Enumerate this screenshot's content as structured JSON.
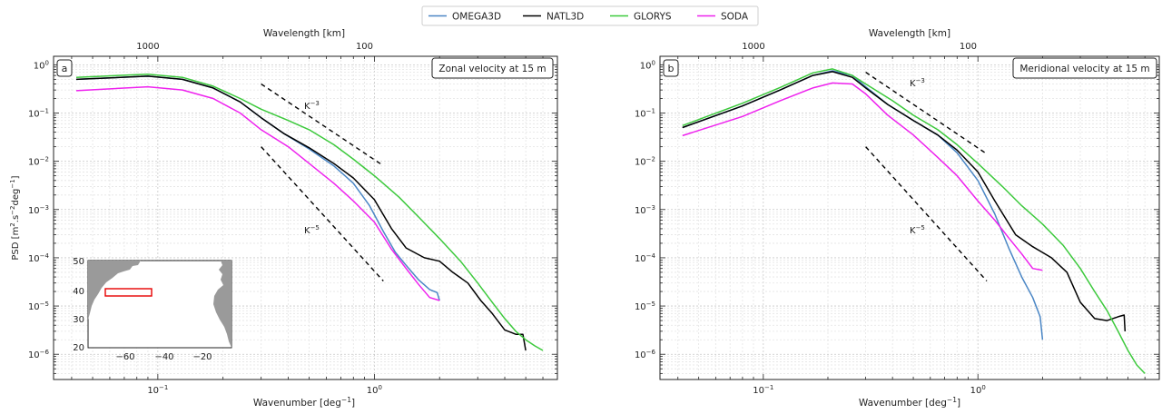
{
  "legend": {
    "placement": "top-center",
    "items": [
      {
        "label": "OMEGA3D",
        "color": "#4a86c5"
      },
      {
        "label": "NATL3D",
        "color": "#000000"
      },
      {
        "label": "GLORYS",
        "color": "#3cc93c"
      },
      {
        "label": "SODA",
        "color": "#ee22ee"
      }
    ]
  },
  "axes_common": {
    "xlabel": "Wavenumber [deg",
    "xlabel_sup": "−1",
    "xlabel_end": "]",
    "top_xlabel": "Wavelength [km]",
    "top_ticks": [
      "1000",
      "100"
    ],
    "x_ticks": [
      {
        "base": "10",
        "exp": "−1"
      },
      {
        "base": "10",
        "exp": "0"
      }
    ],
    "y_ticks": [
      {
        "base": "10",
        "exp": "0"
      },
      {
        "base": "10",
        "exp": "−1"
      },
      {
        "base": "10",
        "exp": "−2"
      },
      {
        "base": "10",
        "exp": "−3"
      },
      {
        "base": "10",
        "exp": "−4"
      },
      {
        "base": "10",
        "exp": "−5"
      },
      {
        "base": "10",
        "exp": "−6"
      }
    ],
    "slope3": {
      "base": "K",
      "exp": "−3"
    },
    "slope5": {
      "base": "K",
      "exp": "−5"
    }
  },
  "ylabel": {
    "a": "PSD [m",
    "b": "2",
    "c": ".s",
    "d": "−2",
    "e": "deg",
    "f": "−1",
    "g": "]"
  },
  "chart_data": [
    {
      "type": "line",
      "panel": "a",
      "title": "Zonal velocity at 15 m",
      "xscale": "log",
      "yscale": "log",
      "xlim": [
        0.033,
        7.0
      ],
      "ylim": [
        3e-07,
        1.5
      ],
      "grid": true,
      "series": [
        {
          "name": "OMEGA3D",
          "color": "#4a86c5",
          "x": [
            0.042,
            0.09,
            0.13,
            0.18,
            0.24,
            0.3,
            0.38,
            0.5,
            0.65,
            0.8,
            0.95,
            1.1,
            1.25,
            1.4,
            1.6,
            1.8,
            1.95,
            2.0
          ],
          "y": [
            0.5,
            0.58,
            0.5,
            0.33,
            0.17,
            0.08,
            0.038,
            0.018,
            0.008,
            0.0035,
            0.0012,
            0.00035,
            0.00013,
            7e-05,
            3.5e-05,
            2.2e-05,
            1.9e-05,
            1.3e-05
          ]
        },
        {
          "name": "NATL3D",
          "color": "#000000",
          "x": [
            0.042,
            0.09,
            0.13,
            0.18,
            0.24,
            0.3,
            0.38,
            0.5,
            0.65,
            0.8,
            1.0,
            1.2,
            1.4,
            1.7,
            2.0,
            2.3,
            2.7,
            3.1,
            3.5,
            4.0,
            4.5,
            4.8,
            4.85,
            5.0
          ],
          "y": [
            0.5,
            0.58,
            0.5,
            0.33,
            0.17,
            0.08,
            0.038,
            0.019,
            0.009,
            0.0045,
            0.0016,
            0.0004,
            0.00016,
            0.0001,
            8.5e-05,
            5e-05,
            3e-05,
            1.3e-05,
            7e-06,
            3.2e-06,
            2.6e-06,
            2.6e-06,
            2.6e-06,
            1.2e-06
          ]
        },
        {
          "name": "GLORYS",
          "color": "#3cc93c",
          "x": [
            0.042,
            0.09,
            0.13,
            0.18,
            0.24,
            0.3,
            0.4,
            0.5,
            0.65,
            0.8,
            1.0,
            1.3,
            1.6,
            2.0,
            2.5,
            3.0,
            3.5,
            4.0,
            4.5,
            5.0,
            5.5,
            6.0
          ],
          "y": [
            0.55,
            0.64,
            0.55,
            0.36,
            0.2,
            0.12,
            0.07,
            0.045,
            0.022,
            0.011,
            0.005,
            0.0018,
            0.0007,
            0.00025,
            8.5e-05,
            3e-05,
            1.2e-05,
            5.5e-06,
            3e-06,
            2e-06,
            1.5e-06,
            1.2e-06
          ]
        },
        {
          "name": "SODA",
          "color": "#ee22ee",
          "x": [
            0.042,
            0.09,
            0.13,
            0.18,
            0.24,
            0.3,
            0.4,
            0.5,
            0.65,
            0.8,
            1.0,
            1.2,
            1.4,
            1.6,
            1.8,
            2.0
          ],
          "y": [
            0.29,
            0.35,
            0.3,
            0.2,
            0.1,
            0.045,
            0.02,
            0.009,
            0.0035,
            0.0015,
            0.00055,
            0.00015,
            6e-05,
            2.8e-05,
            1.5e-05,
            1.3e-05
          ]
        }
      ],
      "reference_slopes": [
        {
          "label": "slope3",
          "x": [
            0.3,
            1.1
          ],
          "y": [
            0.4,
            0.0081
          ]
        },
        {
          "label": "slope5",
          "x": [
            0.3,
            1.1
          ],
          "y": [
            0.02,
            3.3e-05
          ]
        }
      ],
      "inset_map": {
        "y_ticks": [
          "50",
          "40",
          "30",
          "20"
        ],
        "x_ticks": [
          "−60",
          "−40",
          "−20"
        ]
      }
    },
    {
      "type": "line",
      "panel": "b",
      "title": "Meridional velocity at 15 m",
      "xscale": "log",
      "yscale": "log",
      "xlim": [
        0.033,
        7.0
      ],
      "ylim": [
        3e-07,
        1.5
      ],
      "grid": true,
      "series": [
        {
          "name": "OMEGA3D",
          "color": "#4a86c5",
          "x": [
            0.042,
            0.08,
            0.12,
            0.17,
            0.21,
            0.26,
            0.3,
            0.38,
            0.5,
            0.65,
            0.8,
            1.0,
            1.2,
            1.4,
            1.6,
            1.8,
            1.95,
            2.0
          ],
          "y": [
            0.05,
            0.14,
            0.3,
            0.6,
            0.75,
            0.6,
            0.35,
            0.15,
            0.07,
            0.035,
            0.015,
            0.004,
            0.0008,
            0.00015,
            4e-05,
            1.5e-05,
            6e-06,
            2e-06
          ]
        },
        {
          "name": "NATL3D",
          "color": "#000000",
          "x": [
            0.042,
            0.08,
            0.12,
            0.17,
            0.21,
            0.26,
            0.3,
            0.38,
            0.5,
            0.65,
            0.8,
            1.0,
            1.2,
            1.5,
            1.8,
            2.2,
            2.6,
            3.0,
            3.5,
            4.0,
            4.5,
            4.8,
            4.85
          ],
          "y": [
            0.05,
            0.14,
            0.3,
            0.6,
            0.72,
            0.55,
            0.33,
            0.15,
            0.07,
            0.035,
            0.017,
            0.006,
            0.0015,
            0.0003,
            0.00017,
            0.0001,
            5e-05,
            1.2e-05,
            5.5e-06,
            5e-06,
            6e-06,
            6.5e-06,
            3e-06
          ]
        },
        {
          "name": "GLORYS",
          "color": "#3cc93c",
          "x": [
            0.042,
            0.08,
            0.12,
            0.17,
            0.21,
            0.26,
            0.3,
            0.4,
            0.5,
            0.65,
            0.8,
            1.0,
            1.3,
            1.6,
            2.0,
            2.5,
            3.0,
            3.5,
            4.0,
            4.5,
            5.0,
            5.5,
            6.0
          ],
          "y": [
            0.055,
            0.16,
            0.34,
            0.68,
            0.82,
            0.6,
            0.4,
            0.18,
            0.09,
            0.045,
            0.022,
            0.009,
            0.003,
            0.0012,
            0.0005,
            0.00018,
            6e-05,
            2e-05,
            8e-06,
            3e-06,
            1.2e-06,
            6e-07,
            4e-07
          ]
        },
        {
          "name": "SODA",
          "color": "#ee22ee",
          "x": [
            0.042,
            0.08,
            0.12,
            0.17,
            0.21,
            0.26,
            0.3,
            0.38,
            0.5,
            0.65,
            0.8,
            1.0,
            1.2,
            1.4,
            1.6,
            1.8,
            2.0
          ],
          "y": [
            0.034,
            0.085,
            0.18,
            0.33,
            0.42,
            0.4,
            0.25,
            0.09,
            0.035,
            0.012,
            0.005,
            0.0015,
            0.0006,
            0.00025,
            0.00012,
            6e-05,
            5.5e-05
          ]
        }
      ],
      "reference_slopes": [
        {
          "label": "slope3",
          "x": [
            0.3,
            1.1
          ],
          "y": [
            0.7,
            0.0142
          ]
        },
        {
          "label": "slope5",
          "x": [
            0.3,
            1.1
          ],
          "y": [
            0.02,
            3.3e-05
          ]
        }
      ]
    }
  ]
}
